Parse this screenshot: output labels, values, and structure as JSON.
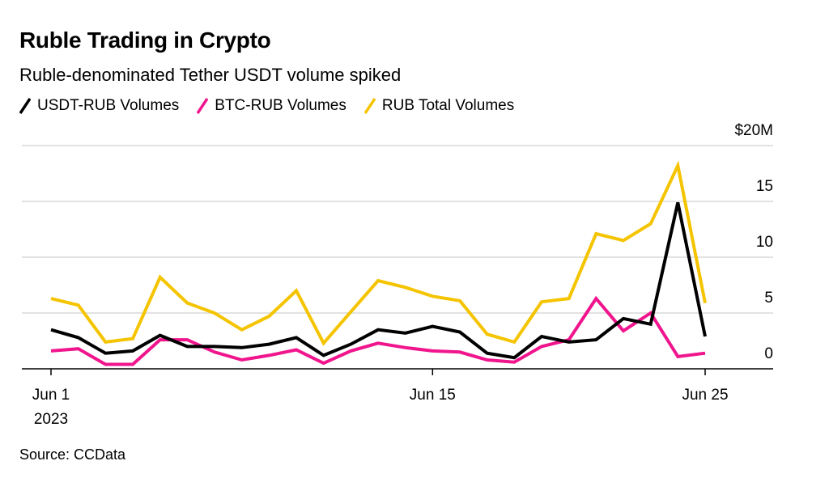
{
  "title": "Ruble Trading in Crypto",
  "subtitle": "Ruble-denominated Tether USDT volume spiked",
  "source": "Source: CCData",
  "chart_data": {
    "type": "line",
    "title": "Ruble Trading in Crypto",
    "subtitle": "Ruble-denominated Tether USDT volume spiked",
    "xlabel": "",
    "ylabel": "",
    "x_unit": "day of June 2023",
    "x": [
      1,
      2,
      3,
      4,
      5,
      6,
      7,
      8,
      9,
      10,
      11,
      12,
      13,
      14,
      15,
      16,
      17,
      18,
      19,
      20,
      21,
      22,
      23,
      24,
      25
    ],
    "xlim": [
      1,
      27
    ],
    "ylim": [
      0,
      20
    ],
    "y_ticks": [
      {
        "value": 20,
        "label": "$20M"
      },
      {
        "value": 15,
        "label": "15"
      },
      {
        "value": 10,
        "label": "10"
      },
      {
        "value": 5,
        "label": "5"
      },
      {
        "value": 0,
        "label": "0"
      }
    ],
    "x_ticks": [
      {
        "value": 1,
        "label": "Jun 1",
        "sublabel": "2023"
      },
      {
        "value": 15,
        "label": "Jun 15",
        "sublabel": ""
      },
      {
        "value": 25,
        "label": "Jun 25",
        "sublabel": ""
      }
    ],
    "grid": true,
    "legend_position": "top-left",
    "series": [
      {
        "name": "USDT-RUB Volumes",
        "color": "#000000",
        "values": [
          3.5,
          2.8,
          1.4,
          1.6,
          3.0,
          2.0,
          2.0,
          1.9,
          2.2,
          2.8,
          1.2,
          2.2,
          3.5,
          3.2,
          3.8,
          3.3,
          1.4,
          1.0,
          2.9,
          2.4,
          2.6,
          4.5,
          4.0,
          14.9,
          2.9
        ]
      },
      {
        "name": "BTC-RUB Volumes",
        "color": "#f0158d",
        "values": [
          1.6,
          1.8,
          0.4,
          0.4,
          2.6,
          2.6,
          1.5,
          0.8,
          1.2,
          1.7,
          0.5,
          1.6,
          2.3,
          1.9,
          1.6,
          1.5,
          0.8,
          0.6,
          2.0,
          2.6,
          6.3,
          3.4,
          5.0,
          1.1,
          1.4
        ]
      },
      {
        "name": "RUB Total Volumes",
        "color": "#f5c400",
        "values": [
          6.3,
          5.7,
          2.4,
          2.7,
          8.2,
          5.9,
          5.0,
          3.5,
          4.7,
          7.0,
          2.3,
          5.1,
          7.9,
          7.3,
          6.5,
          6.1,
          3.1,
          2.4,
          6.0,
          6.3,
          12.1,
          11.5,
          13.0,
          18.2,
          5.9
        ]
      }
    ]
  }
}
